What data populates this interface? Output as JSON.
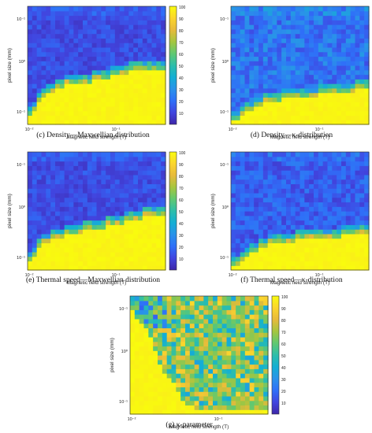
{
  "figure": {
    "colormap": [
      "#3e26a8",
      "#4145df",
      "#2f6ff8",
      "#2a92e9",
      "#13afd4",
      "#2dbeaa",
      "#60c871",
      "#a5c63f",
      "#e7ba3b",
      "#fbd52d",
      "#f9fb0e"
    ],
    "colorbar_ticks": [
      "100",
      "90",
      "80",
      "70",
      "60",
      "50",
      "40",
      "30",
      "20",
      "10"
    ]
  },
  "chart_data": [
    {
      "id": "c",
      "type": "heatmap",
      "caption": "(c) Density—Maxwellian distribution",
      "xlabel": "Magnetic field strength (T)",
      "ylabel": "pixel size (mm)",
      "x_scale": "log",
      "y_scale": "log",
      "x_tick_labels": [
        "10⁻²",
        "10⁻¹"
      ],
      "y_tick_labels": [
        "10⁻¹",
        "10⁰",
        "10⁻¹"
      ],
      "color_range": [
        0,
        100
      ],
      "boundary_rows": [
        3,
        4,
        6,
        7,
        8,
        8,
        9,
        9,
        10,
        10,
        10,
        10,
        10,
        10,
        11,
        11,
        11,
        11,
        12,
        12,
        12,
        12,
        13,
        13,
        13,
        13,
        13,
        13,
        13,
        13
      ],
      "low_value": 12,
      "high_value": 100,
      "noise": 6
    },
    {
      "id": "d",
      "type": "heatmap",
      "caption": "(d) Density—κ-distribution",
      "xlabel": "Magnetic field strength (T)",
      "ylabel": "pixel size (mm)",
      "x_scale": "log",
      "y_scale": "log",
      "x_tick_labels": [
        "10⁻²",
        "10⁻¹"
      ],
      "y_tick_labels": [
        "10⁻¹",
        "10⁰",
        "10⁻¹"
      ],
      "color_range": [
        0,
        100
      ],
      "boundary_rows": [
        2,
        2,
        3,
        4,
        4,
        5,
        5,
        6,
        6,
        6,
        6,
        7,
        7,
        7,
        7,
        7,
        7,
        7,
        7,
        8,
        8,
        8,
        8,
        8,
        8,
        8,
        8,
        9,
        9,
        9
      ],
      "low_value": 22,
      "high_value": 100,
      "noise": 10
    },
    {
      "id": "e",
      "type": "heatmap",
      "caption": "(e) Thermal speed—Maxwellian distribution",
      "xlabel": "Magnetic field strength (T)",
      "ylabel": "pixel size (mm)",
      "x_scale": "log",
      "y_scale": "log",
      "x_tick_labels": [
        "10⁻²",
        "10⁻¹"
      ],
      "y_tick_labels": [
        "10⁻¹",
        "10⁰",
        "10⁻¹"
      ],
      "color_range": [
        0,
        100
      ],
      "boundary_rows": [
        3,
        4,
        6,
        7,
        7,
        8,
        8,
        8,
        9,
        9,
        9,
        9,
        10,
        10,
        10,
        10,
        10,
        11,
        11,
        11,
        11,
        12,
        12,
        12,
        12,
        13,
        13,
        13,
        13,
        13
      ],
      "low_value": 12,
      "high_value": 100,
      "noise": 6
    },
    {
      "id": "f",
      "type": "heatmap",
      "caption": "(f) Thermal speed—κ-distribution",
      "xlabel": "Magnetic field strength (T)",
      "ylabel": "pixel size (mm)",
      "x_scale": "log",
      "y_scale": "log",
      "x_tick_labels": [
        "10⁻²",
        "10⁻¹"
      ],
      "y_tick_labels": [
        "10⁻¹",
        "10⁰",
        "10⁻¹"
      ],
      "color_range": [
        0,
        100
      ],
      "boundary_rows": [
        2,
        2,
        3,
        4,
        5,
        5,
        6,
        6,
        7,
        7,
        7,
        7,
        7,
        7,
        8,
        8,
        8,
        8,
        8,
        8,
        8,
        8,
        8,
        8,
        9,
        9,
        9,
        9,
        9,
        9
      ],
      "low_value": 16,
      "high_value": 100,
      "noise": 8
    },
    {
      "id": "g",
      "type": "heatmap",
      "caption": "(g) κ-parameter",
      "xlabel": "Magnetic field strength (T)",
      "ylabel": "pixel size (mm)",
      "x_scale": "log",
      "y_scale": "log",
      "x_tick_labels": [
        "10⁻²",
        "10⁻¹"
      ],
      "y_tick_labels": [
        "10⁻¹",
        "10⁰",
        "10⁻¹"
      ],
      "color_range": [
        0,
        100
      ],
      "boundary_rows": [
        24,
        22,
        21,
        20,
        18,
        15,
        12,
        10,
        9,
        8,
        6,
        4,
        3,
        3,
        2,
        2,
        2,
        2,
        2,
        2,
        2,
        2,
        2,
        2,
        2,
        2,
        2,
        2,
        2,
        2
      ],
      "low_value": 35,
      "high_value": 100,
      "noise": 28
    }
  ]
}
